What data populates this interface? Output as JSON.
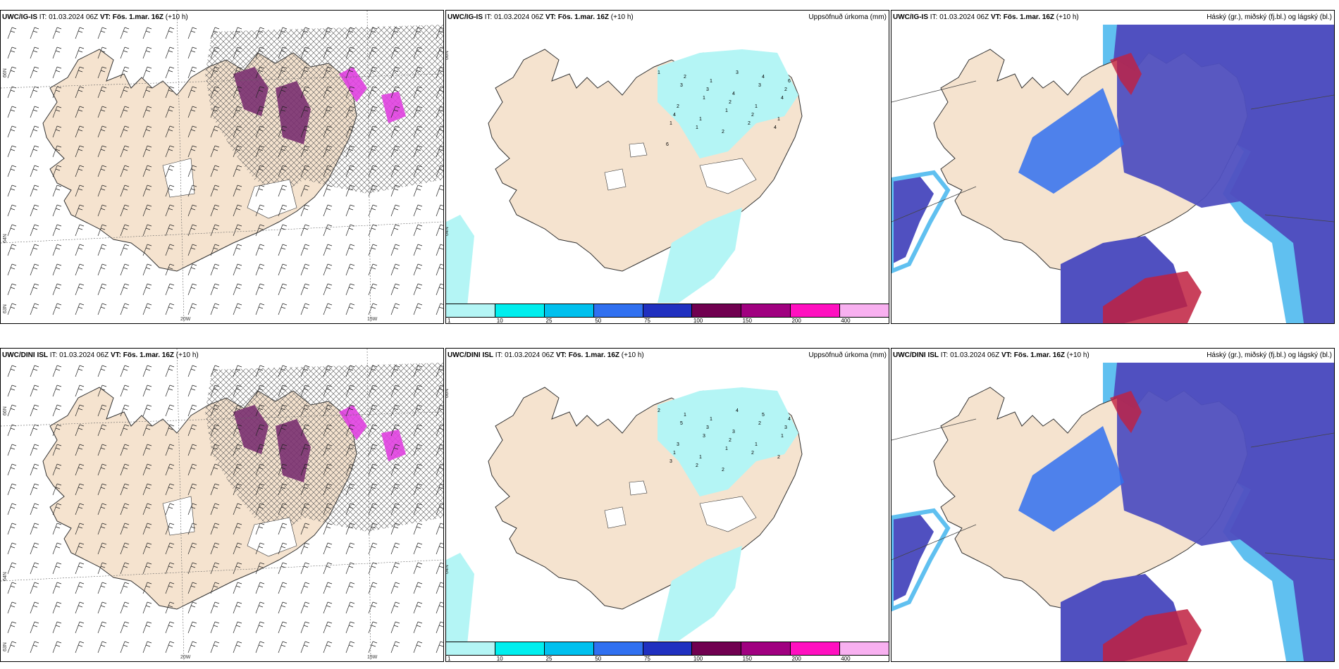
{
  "panels": [
    {
      "model": "UWC/IG-IS",
      "it_label": "IT:",
      "it_value": "01.03.2024 06Z",
      "vt_label": "VT:",
      "vt_value": "Fös. 1.mar. 16Z",
      "lead": "(+10 h)",
      "right_title": "",
      "lat_labels": [
        "66N",
        "64N",
        "63N"
      ],
      "lon_labels": [
        "20W",
        "15W"
      ]
    },
    {
      "model": "UWC/IG-IS",
      "it_label": "IT:",
      "it_value": "01.03.2024 06Z",
      "vt_label": "VT:",
      "vt_value": "Fös. 1.mar. 16Z",
      "lead": "(+10 h)",
      "right_title": "Uppsöfnuð úrkoma (mm)",
      "lat_labels": [
        "66N",
        "64N"
      ],
      "lon_labels": []
    },
    {
      "model": "UWC/IG-IS",
      "it_label": "IT:",
      "it_value": "01.03.2024 06Z",
      "vt_label": "VT:",
      "vt_value": "Fös. 1.mar. 16Z",
      "lead": "(+10 h)",
      "right_title": "Háský (gr.), miðský (fj.bl.) og lágský (bl.)",
      "lat_labels": [],
      "lon_labels": []
    },
    {
      "model": "UWC/DINI ISL",
      "it_label": "IT:",
      "it_value": "01.03.2024 06Z",
      "vt_label": "VT:",
      "vt_value": "Fös. 1.mar. 16Z",
      "lead": "(+10 h)",
      "right_title": "",
      "lat_labels": [
        "66N",
        "64N",
        "63N"
      ],
      "lon_labels": [
        "20W",
        "15W"
      ]
    },
    {
      "model": "UWC/DINI ISL",
      "it_label": "IT:",
      "it_value": "01.03.2024 06Z",
      "vt_label": "VT:",
      "vt_value": "Fös. 1.mar. 16Z",
      "lead": "(+10 h)",
      "right_title": "Uppsöfnuð úrkoma (mm)",
      "lat_labels": [
        "66N",
        "64N"
      ],
      "lon_labels": []
    },
    {
      "model": "UWC/DINI ISL",
      "it_label": "IT:",
      "it_value": "01.03.2024 06Z",
      "vt_label": "VT:",
      "vt_value": "Fös. 1.mar. 16Z",
      "lead": "(+10 h)",
      "right_title": "Háský (gr.), miðský (fj.bl.) og lágský (bl.)",
      "lat_labels": [],
      "lon_labels": []
    }
  ],
  "colorbar": {
    "ticks": [
      "1",
      "10",
      "25",
      "50",
      "75",
      "100",
      "150",
      "200",
      "400"
    ],
    "colors": [
      "#b4f5f5",
      "#00eeee",
      "#00c0ee",
      "#3070f0",
      "#2030c0",
      "#700050",
      "#a00080",
      "#ff10c0",
      "#f8b0f0"
    ]
  },
  "precip_labels_top": [
    "1",
    "2",
    "1",
    "3",
    "4",
    "6",
    "3",
    "3",
    "4",
    "3",
    "2",
    "2",
    "1",
    "2",
    "1",
    "4",
    "4",
    "1",
    "1",
    "2",
    "1",
    "1",
    "1",
    "2",
    "2",
    "4",
    "6"
  ],
  "precip_labels_bottom": [
    "2",
    "1",
    "1",
    "4",
    "5",
    "4",
    "5",
    "3",
    "3",
    "2",
    "3",
    "3",
    "3",
    "2",
    "1",
    "1",
    "1",
    "1",
    "1",
    "2",
    "2",
    "3",
    "2",
    "2"
  ],
  "colors": {
    "land": "#f5e3cf",
    "cyan_light": "#b4f5f5",
    "cloud_high": "#5050c0",
    "cloud_mid": "#3070f0",
    "cloud_low": "#60c0f0",
    "purple_precip": "#7a3070",
    "magenta_precip": "#e040e0",
    "red_cloud": "#c02040"
  }
}
